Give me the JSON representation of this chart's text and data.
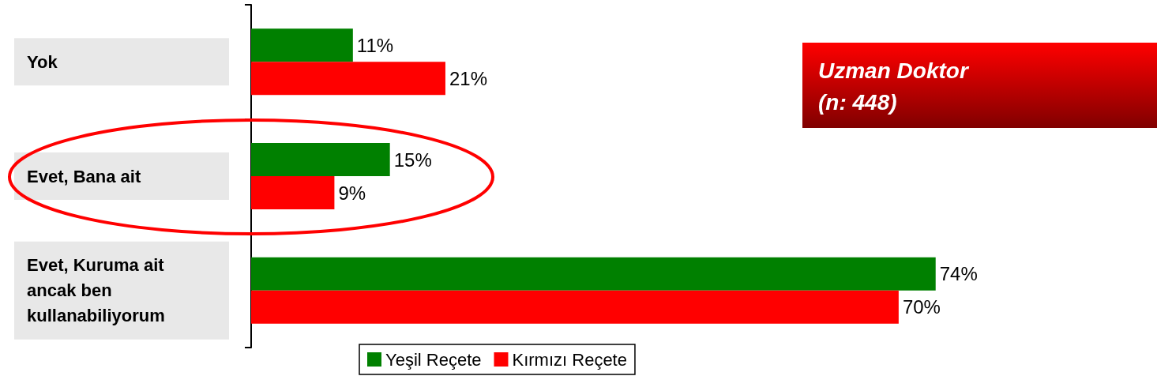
{
  "chart_data": {
    "type": "bar",
    "orientation": "horizontal",
    "categories": [
      "Yok",
      "Evet, Bana ait",
      "Evet, Kuruma ait ancak ben kullanabiliyorum"
    ],
    "series": [
      {
        "name": "Yeşil Reçete",
        "color": "#008000",
        "values": [
          11,
          15,
          74
        ],
        "value_labels": [
          "11%",
          "15%",
          "74%"
        ]
      },
      {
        "name": "Kırmızı Reçete",
        "color": "#ff0000",
        "values": [
          21,
          9,
          70
        ],
        "value_labels": [
          "21%",
          "9%",
          "70%"
        ]
      }
    ],
    "annotations": [
      "Uzman Doktor\n(n: 448)"
    ],
    "legend": "bottom"
  }
}
